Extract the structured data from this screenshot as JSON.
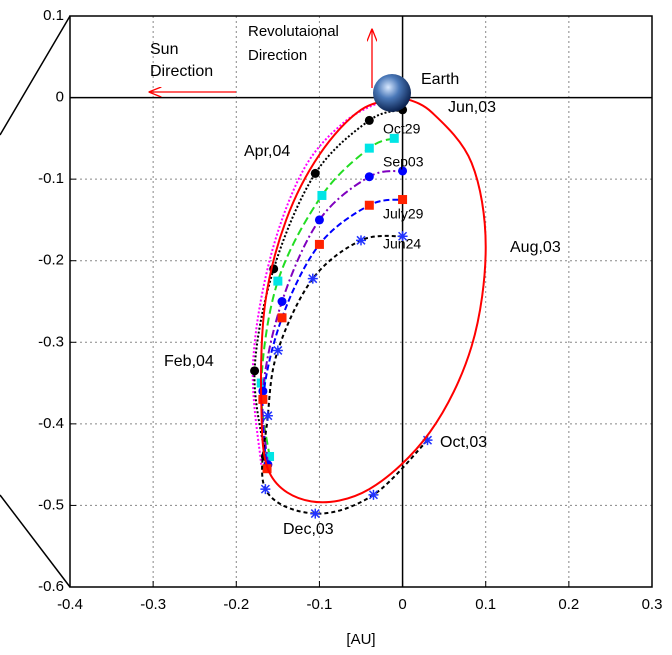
{
  "chart_data": {
    "type": "line",
    "xlabel": "[AU]",
    "xlim": [
      -0.4,
      0.3
    ],
    "ylim": [
      -0.6,
      0.1
    ],
    "xticks": [
      -0.4,
      -0.3,
      -0.2,
      -0.1,
      0,
      0.1,
      0.2,
      0.3
    ],
    "yticks": [
      0.1,
      0,
      -0.1,
      -0.2,
      -0.3,
      -0.4,
      -0.5,
      -0.6
    ],
    "grid": true,
    "series": [
      {
        "color": "#ff00ff",
        "dash": "2,2",
        "marker": "none",
        "marker_color": "#ff00ff",
        "x": [
          -0.17,
          -0.18,
          -0.16,
          -0.12,
          -0.07,
          -0.02,
          0
        ],
        "y": [
          -0.45,
          -0.33,
          -0.2,
          -0.09,
          -0.03,
          -0.003,
          0
        ]
      },
      {
        "color": "#000000",
        "dash": "2,2",
        "marker": "circle",
        "marker_color": "#000000",
        "x": [
          -0.165,
          -0.178,
          -0.155,
          -0.105,
          -0.04,
          0
        ],
        "y": [
          -0.44,
          -0.335,
          -0.21,
          -0.093,
          -0.028,
          -0.015
        ]
      },
      {
        "color": "#22dd22",
        "dash": "8,4",
        "marker": "square",
        "marker_color": "#00e5e5",
        "x": [
          -0.16,
          -0.17,
          -0.15,
          -0.097,
          -0.04,
          -0.01
        ],
        "y": [
          -0.44,
          -0.35,
          -0.225,
          -0.12,
          -0.062,
          -0.05
        ]
      },
      {
        "color": "#7f00bf",
        "dash": "8,3,2,3",
        "marker": "circle",
        "marker_color": "#0000ff",
        "x": [
          -0.162,
          -0.168,
          -0.145,
          -0.1,
          -0.04,
          0
        ],
        "y": [
          -0.45,
          -0.36,
          -0.25,
          -0.15,
          -0.097,
          -0.09
        ]
      },
      {
        "color": "#0000ff",
        "dash": "6,3",
        "marker": "square",
        "marker_color": "#ff2200",
        "x": [
          -0.163,
          -0.168,
          -0.145,
          -0.1,
          -0.04,
          0
        ],
        "y": [
          -0.455,
          -0.37,
          -0.27,
          -0.18,
          -0.132,
          -0.125
        ]
      },
      {
        "color": "#000000",
        "dash": "4,3",
        "marker": "star",
        "marker_color": "#2233ff",
        "x": [
          0.03,
          -0.035,
          -0.105,
          -0.165,
          -0.162,
          -0.15,
          -0.108,
          -0.05,
          0
        ],
        "y": [
          -0.42,
          -0.487,
          -0.51,
          -0.48,
          -0.39,
          -0.31,
          -0.222,
          -0.175,
          -0.17
        ]
      },
      {
        "color": "#ff0000",
        "dash": "none",
        "marker": "none",
        "marker_color": "#ff0000",
        "x": [
          0,
          0.035,
          0.083,
          0.1,
          0.083,
          0.033,
          -0.04,
          -0.11,
          -0.16,
          -0.17,
          -0.165,
          -0.14,
          -0.1,
          -0.05,
          0
        ],
        "y": [
          0,
          -0.018,
          -0.08,
          -0.183,
          -0.305,
          -0.41,
          -0.48,
          -0.495,
          -0.46,
          -0.37,
          -0.25,
          -0.15,
          -0.07,
          -0.015,
          0
        ]
      }
    ],
    "annotations": [
      "Sun",
      "Direction",
      "Revolutaional",
      "Direction",
      "Earth",
      "Jun,03",
      "Aug,03",
      "Oct,03",
      "Dec,03",
      "Feb,04",
      "Apr,04",
      "Oct29",
      "Sep03",
      "July29",
      "Jun24"
    ]
  }
}
